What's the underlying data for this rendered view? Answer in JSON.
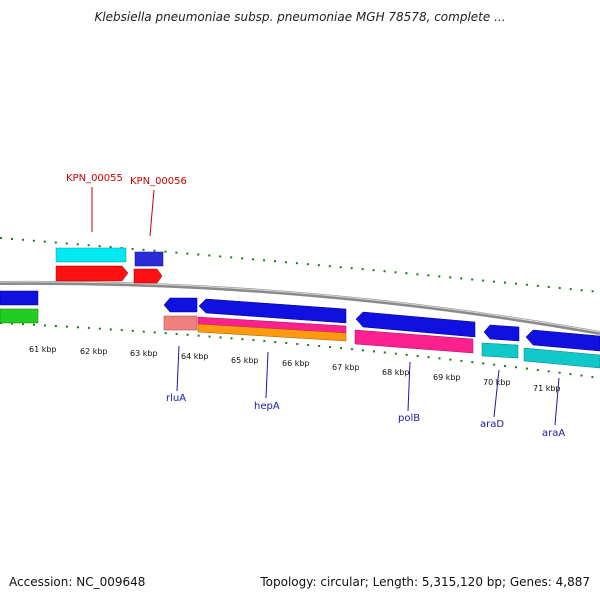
{
  "header": {
    "title": "Klebsiella pneumoniae subsp. pneumoniae MGH 78578, complete ..."
  },
  "footer": {
    "accession": "Accession: NC_009648",
    "summary": "Topology: circular; Length: 5,315,120 bp; Genes: 4,887"
  },
  "colors": {
    "backbone": "#8a8a8a",
    "tick": "#1a7a1a",
    "label_top": "#cc0000",
    "label_bottom": "#1a1aaa"
  },
  "ticks": [
    "61 kbp",
    "62 kbp",
    "63 kbp",
    "64 kbp",
    "65 kbp",
    "66 kbp",
    "67 kbp",
    "68 kbp",
    "69 kbp",
    "70 kbp",
    "71 kbp"
  ],
  "gene_labels": {
    "top": [
      "KPN_00055",
      "KPN_00056"
    ],
    "bottom": [
      "rluA",
      "hepA",
      "polB",
      "araD",
      "araA"
    ]
  }
}
